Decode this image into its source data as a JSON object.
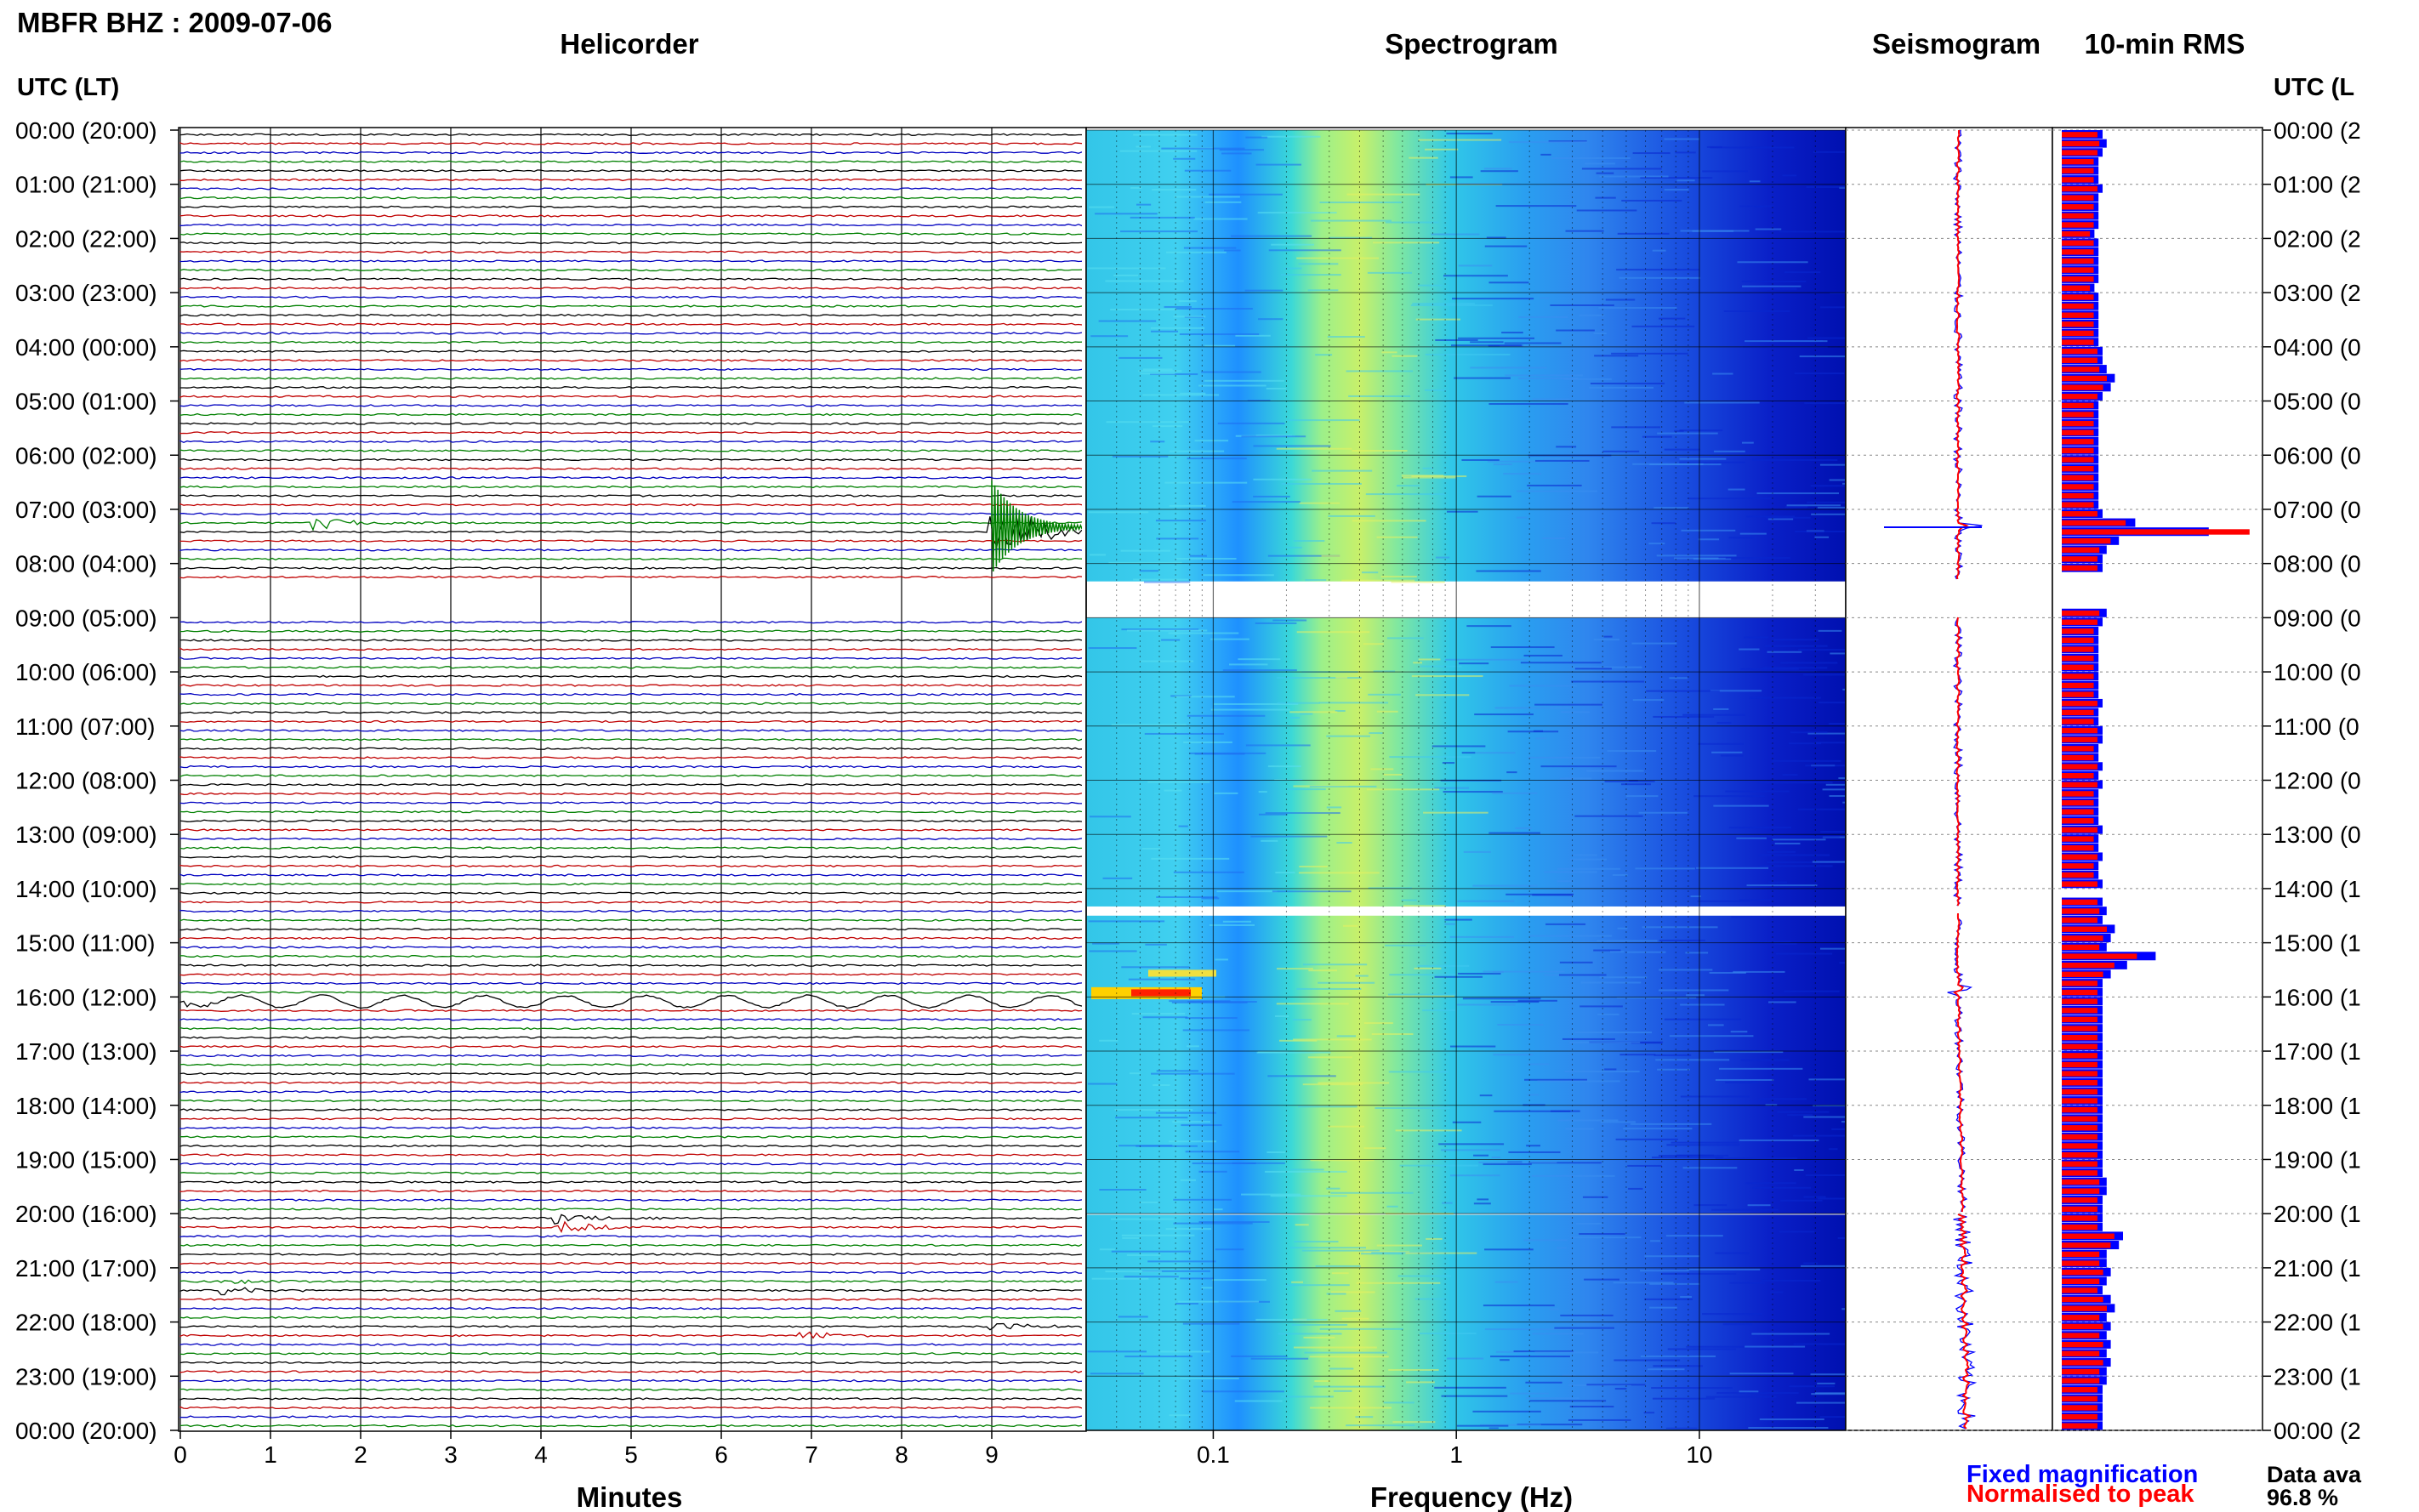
{
  "figure": {
    "title": "MBFR BHZ : 2009-07-06",
    "panels": [
      "Helicorder",
      "Spectrogram",
      "Seismogram",
      "10-min RMS"
    ],
    "time_header_left": "UTC (LT)",
    "time_header_right": "UTC (L",
    "hour_labels_left": [
      "00:00 (20:00)",
      "01:00 (21:00)",
      "02:00 (22:00)",
      "03:00 (23:00)",
      "04:00 (00:00)",
      "05:00 (01:00)",
      "06:00 (02:00)",
      "07:00 (03:00)",
      "08:00 (04:00)",
      "09:00 (05:00)",
      "10:00 (06:00)",
      "11:00 (07:00)",
      "12:00 (08:00)",
      "13:00 (09:00)",
      "14:00 (10:00)",
      "15:00 (11:00)",
      "16:00 (12:00)",
      "17:00 (13:00)",
      "18:00 (14:00)",
      "19:00 (15:00)",
      "20:00 (16:00)",
      "21:00 (17:00)",
      "22:00 (18:00)",
      "23:00 (19:00)",
      "00:00 (20:00)"
    ],
    "hour_labels_right": [
      "00:00 (2",
      "01:00 (2",
      "02:00 (2",
      "03:00 (2",
      "04:00 (0",
      "05:00 (0",
      "06:00 (0",
      "07:00 (0",
      "08:00 (0",
      "09:00 (0",
      "10:00 (0",
      "11:00 (0",
      "12:00 (0",
      "13:00 (0",
      "14:00 (1",
      "15:00 (1",
      "16:00 (1",
      "17:00 (1",
      "18:00 (1",
      "19:00 (1",
      "20:00 (1",
      "21:00 (1",
      "22:00 (1",
      "23:00 (1",
      "00:00 (2"
    ],
    "minutes_ticks": [
      "0",
      "1",
      "2",
      "3",
      "4",
      "5",
      "6",
      "7",
      "8",
      "9"
    ],
    "minutes_label": "Minutes",
    "freq_ticks": [
      "0.1",
      "1",
      "10"
    ],
    "freq_label": "Frequency (Hz)",
    "legend": {
      "fixed": "Fixed magnification",
      "normalised": "Normalised to peak"
    },
    "data_availability": {
      "label": "Data ava",
      "value": "96.8 %"
    },
    "colors": {
      "trace_cycle": [
        "#000000",
        "#c00000",
        "#0000c0",
        "#008000"
      ],
      "fixed": "#0000ff",
      "normalised": "#ff0000"
    }
  },
  "chart_data": {
    "type": "heatmap",
    "station": "MBFR BHZ",
    "date": "2009-07-06",
    "time_axis": "UTC hours 00:00 to 24:00, one helicorder line per 10 minutes",
    "freq_scale": "log",
    "freq_range_hz": [
      0.03,
      40
    ],
    "helicorder_events": [
      {
        "hour": 7.33,
        "minute": 9.0,
        "amplitude": 8.0,
        "color": "green"
      },
      {
        "hour": 7.17,
        "minute": 1.5,
        "amplitude": 1.5,
        "color": "black"
      },
      {
        "hour": 16.0,
        "minute": 0.0,
        "amplitude": 1.0,
        "color": "black"
      },
      {
        "hour": 20.08,
        "minute": 4.2,
        "amplitude": 1.2,
        "color": "red"
      },
      {
        "hour": 21.25,
        "minute": 0.5,
        "amplitude": 1.0,
        "color": "red"
      },
      {
        "hour": 22.0,
        "minute": 9.0,
        "amplitude": 1.0,
        "color": "black"
      },
      {
        "hour": 22.17,
        "minute": 6.9,
        "amplitude": 1.0,
        "color": "blue"
      }
    ],
    "spectrogram_gaps_hours": [
      [
        8.33,
        9.0
      ],
      [
        14.33,
        14.5
      ],
      [
        20.0,
        20.02
      ]
    ],
    "rms_fixed_10min": [
      1.0,
      1.1,
      1.0,
      0.9,
      0.9,
      0.9,
      1.0,
      0.9,
      0.9,
      0.9,
      0.9,
      0.8,
      0.9,
      0.9,
      0.9,
      0.9,
      0.9,
      0.8,
      0.9,
      0.9,
      0.9,
      0.9,
      0.9,
      0.9,
      1.0,
      1.0,
      1.1,
      1.3,
      1.2,
      1.0,
      0.9,
      0.9,
      0.9,
      0.9,
      0.9,
      0.9,
      0.9,
      0.9,
      0.9,
      0.9,
      0.9,
      0.9,
      1.0,
      1.8,
      3.6,
      1.4,
      1.1,
      1.0,
      1.0,
      0,
      0,
      0,
      0,
      1.1,
      1.0,
      0.9,
      0.9,
      0.9,
      0.9,
      0.9,
      0.9,
      0.9,
      0.9,
      1.0,
      0.9,
      0.9,
      1.0,
      1.0,
      0.9,
      0.9,
      1.0,
      0.9,
      1.0,
      0.9,
      0.9,
      0.9,
      0.9,
      1.0,
      0.9,
      0.9,
      1.0,
      0.9,
      0.9,
      1.0,
      0,
      1.0,
      1.1,
      1.0,
      1.3,
      1.2,
      1.1,
      2.3,
      1.6,
      1.2,
      1.0,
      1.0,
      1.0,
      1.0,
      1.0,
      1.0,
      1.0,
      1.0,
      1.0,
      1.0,
      1.0,
      1.0,
      1.0,
      1.0,
      1.0,
      1.0,
      1.0,
      1.0,
      1.0,
      1.0,
      1.0,
      1.0,
      1.1,
      1.1,
      1.0,
      1.0,
      1.0,
      1.0,
      1.5,
      1.4,
      1.1,
      1.1,
      1.2,
      1.1,
      1.0,
      1.2,
      1.3,
      1.1,
      1.2,
      1.1,
      1.2,
      1.1,
      1.2,
      1.1,
      1.1,
      1.0,
      1.0,
      1.0,
      1.0,
      1.0
    ],
    "rms_normalised_10min": [
      0.95,
      1.0,
      0.95,
      0.85,
      0.85,
      0.85,
      0.95,
      0.85,
      0.85,
      0.85,
      0.85,
      0.75,
      0.85,
      0.85,
      0.85,
      0.85,
      0.85,
      0.75,
      0.85,
      0.85,
      0.85,
      0.85,
      0.85,
      0.85,
      0.95,
      0.95,
      1.0,
      1.2,
      1.1,
      0.95,
      0.85,
      0.85,
      0.85,
      0.85,
      0.85,
      0.85,
      0.85,
      0.85,
      0.85,
      0.85,
      0.85,
      0.85,
      0.95,
      1.7,
      5.0,
      1.3,
      1.0,
      0.95,
      0.95,
      0,
      0,
      0,
      0,
      1.0,
      0.95,
      0.85,
      0.85,
      0.85,
      0.85,
      0.85,
      0.85,
      0.85,
      0.85,
      0.95,
      0.85,
      0.85,
      0.95,
      0.95,
      0.85,
      0.85,
      0.95,
      0.85,
      0.95,
      0.85,
      0.85,
      0.85,
      0.85,
      0.95,
      0.85,
      0.85,
      0.95,
      0.85,
      0.85,
      0.95,
      0,
      0.95,
      1.0,
      0.95,
      1.2,
      1.1,
      1.0,
      2.0,
      1.4,
      1.1,
      0.95,
      0.95,
      0.95,
      0.95,
      0.95,
      0.95,
      0.95,
      0.95,
      0.95,
      0.95,
      0.95,
      0.95,
      0.95,
      0.95,
      0.95,
      0.95,
      0.95,
      0.95,
      0.95,
      0.95,
      0.95,
      0.95,
      1.0,
      1.0,
      0.95,
      0.95,
      0.95,
      0.95,
      1.4,
      1.3,
      1.0,
      1.0,
      1.1,
      1.0,
      0.95,
      1.1,
      1.2,
      1.0,
      1.1,
      1.0,
      1.1,
      1.0,
      1.1,
      1.0,
      1.0,
      0.95,
      0.95,
      0.95,
      0.95,
      0.95
    ]
  }
}
